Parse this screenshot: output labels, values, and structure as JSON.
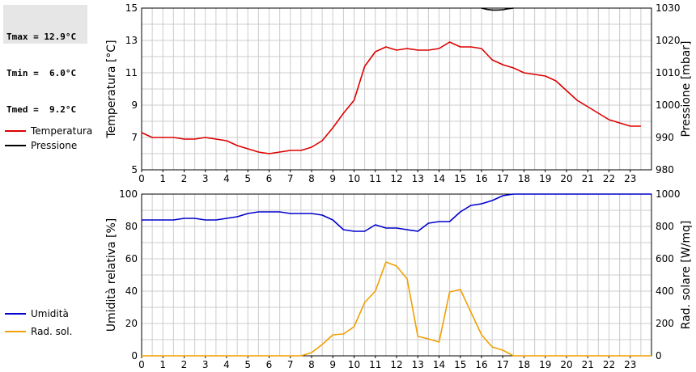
{
  "stats": {
    "tmax": "Tmax = 12.9°C",
    "tmin": "Tmin =  6.0°C",
    "tmed": "Tmed =  9.2°C"
  },
  "colors": {
    "temperature": "#dd0000",
    "pressure": "#000000",
    "humidity": "#0000cc",
    "radiation": "#f0a000",
    "grid": "#cccccc"
  },
  "chart_data": [
    {
      "type": "line",
      "xlabel": "",
      "x_ticks": [
        "0",
        "1",
        "2",
        "3",
        "4",
        "5",
        "6",
        "7",
        "8",
        "9",
        "10",
        "11",
        "12",
        "13",
        "14",
        "15",
        "16",
        "17",
        "18",
        "19",
        "20",
        "21",
        "22",
        "23"
      ],
      "xlim": [
        0,
        24
      ],
      "ylabel_left": "Temperatura [°C]",
      "ylim_left": [
        5,
        15
      ],
      "yticks_left": [
        "5",
        "7",
        "9",
        "11",
        "13",
        "15"
      ],
      "ylabel_right": "Pressione [mbar]",
      "ylim_right": [
        980,
        1030
      ],
      "yticks_right": [
        "980",
        "990",
        "1000",
        "1010",
        "1020",
        "1030"
      ],
      "grid": true,
      "legend": "left",
      "series": [
        {
          "name": "Temperatura",
          "axis": "left",
          "x": [
            0,
            0.5,
            1,
            1.5,
            2,
            2.5,
            3,
            3.5,
            4,
            4.5,
            5,
            5.5,
            6,
            6.5,
            7,
            7.5,
            8,
            8.5,
            9,
            9.5,
            10,
            10.5,
            11,
            11.5,
            12,
            12.5,
            13,
            13.5,
            14,
            14.5,
            15,
            15.5,
            16,
            16.5,
            17,
            17.5,
            18,
            18.5,
            19,
            19.5,
            20,
            20.5,
            21,
            21.5,
            22,
            22.5,
            23,
            23.5
          ],
          "values": [
            7.3,
            7.0,
            7.0,
            7.0,
            6.9,
            6.9,
            7.0,
            6.9,
            6.8,
            6.5,
            6.3,
            6.1,
            6.0,
            6.1,
            6.2,
            6.2,
            6.4,
            6.8,
            7.6,
            8.5,
            9.3,
            11.4,
            12.3,
            12.6,
            12.4,
            12.5,
            12.4,
            12.4,
            12.5,
            12.9,
            12.6,
            12.6,
            12.5,
            11.8,
            11.5,
            11.3,
            11.0,
            10.9,
            10.8,
            10.5,
            9.9,
            9.3,
            8.9,
            8.5,
            8.1,
            7.9,
            7.7,
            7.7
          ]
        },
        {
          "name": "Pressione",
          "axis": "right",
          "x": [
            16,
            16.25,
            16.5,
            16.75,
            17,
            17.25,
            17.5
          ],
          "values": [
            1030.0,
            1029.6,
            1029.4,
            1029.4,
            1029.5,
            1029.8,
            1030.0
          ]
        }
      ]
    },
    {
      "type": "line",
      "xlabel": "",
      "x_ticks": [
        "0",
        "1",
        "2",
        "3",
        "4",
        "5",
        "6",
        "7",
        "8",
        "9",
        "10",
        "11",
        "12",
        "13",
        "14",
        "15",
        "16",
        "17",
        "18",
        "19",
        "20",
        "21",
        "22",
        "23"
      ],
      "xlim": [
        0,
        24
      ],
      "ylabel_left": "Umidità relativa [%]",
      "ylim_left": [
        0,
        100
      ],
      "yticks_left": [
        "0",
        "20",
        "40",
        "60",
        "80",
        "100"
      ],
      "ylabel_right": "Rad. solare [W/mq]",
      "ylim_right": [
        0,
        1000
      ],
      "yticks_right": [
        "0",
        "200",
        "400",
        "600",
        "800",
        "1000"
      ],
      "grid": true,
      "legend": "left",
      "series": [
        {
          "name": "Umidità",
          "axis": "left",
          "x": [
            0,
            0.5,
            1,
            1.5,
            2,
            2.5,
            3,
            3.5,
            4,
            4.5,
            5,
            5.5,
            6,
            6.5,
            7,
            7.5,
            8,
            8.5,
            9,
            9.5,
            10,
            10.5,
            11,
            11.5,
            12,
            12.5,
            13,
            13.5,
            14,
            14.5,
            15,
            15.5,
            16,
            16.5,
            17,
            17.5,
            18,
            18.5,
            19,
            19.5,
            20,
            20.5,
            21,
            21.5,
            22,
            22.5,
            23,
            23.5,
            24
          ],
          "values": [
            84,
            84,
            84,
            84,
            85,
            85,
            84,
            84,
            85,
            86,
            88,
            89,
            89,
            89,
            88,
            88,
            88,
            87,
            84,
            78,
            77,
            77,
            81,
            79,
            79,
            78,
            77,
            82,
            83,
            83,
            89,
            93,
            94,
            96,
            99,
            100,
            100,
            100,
            100,
            100,
            100,
            100,
            100,
            100,
            100,
            100,
            100,
            100,
            100
          ]
        },
        {
          "name": "Rad. sol.",
          "axis": "right",
          "x": [
            0,
            7.5,
            8,
            8.5,
            9,
            9.5,
            10,
            10.5,
            11,
            11.5,
            12,
            12.5,
            13,
            13.5,
            14,
            14.5,
            15,
            15.5,
            16,
            16.5,
            17,
            17.5,
            24
          ],
          "values": [
            0,
            0,
            20,
            70,
            130,
            135,
            180,
            330,
            400,
            580,
            555,
            475,
            120,
            105,
            85,
            395,
            410,
            270,
            130,
            55,
            35,
            0,
            0
          ]
        }
      ]
    }
  ]
}
